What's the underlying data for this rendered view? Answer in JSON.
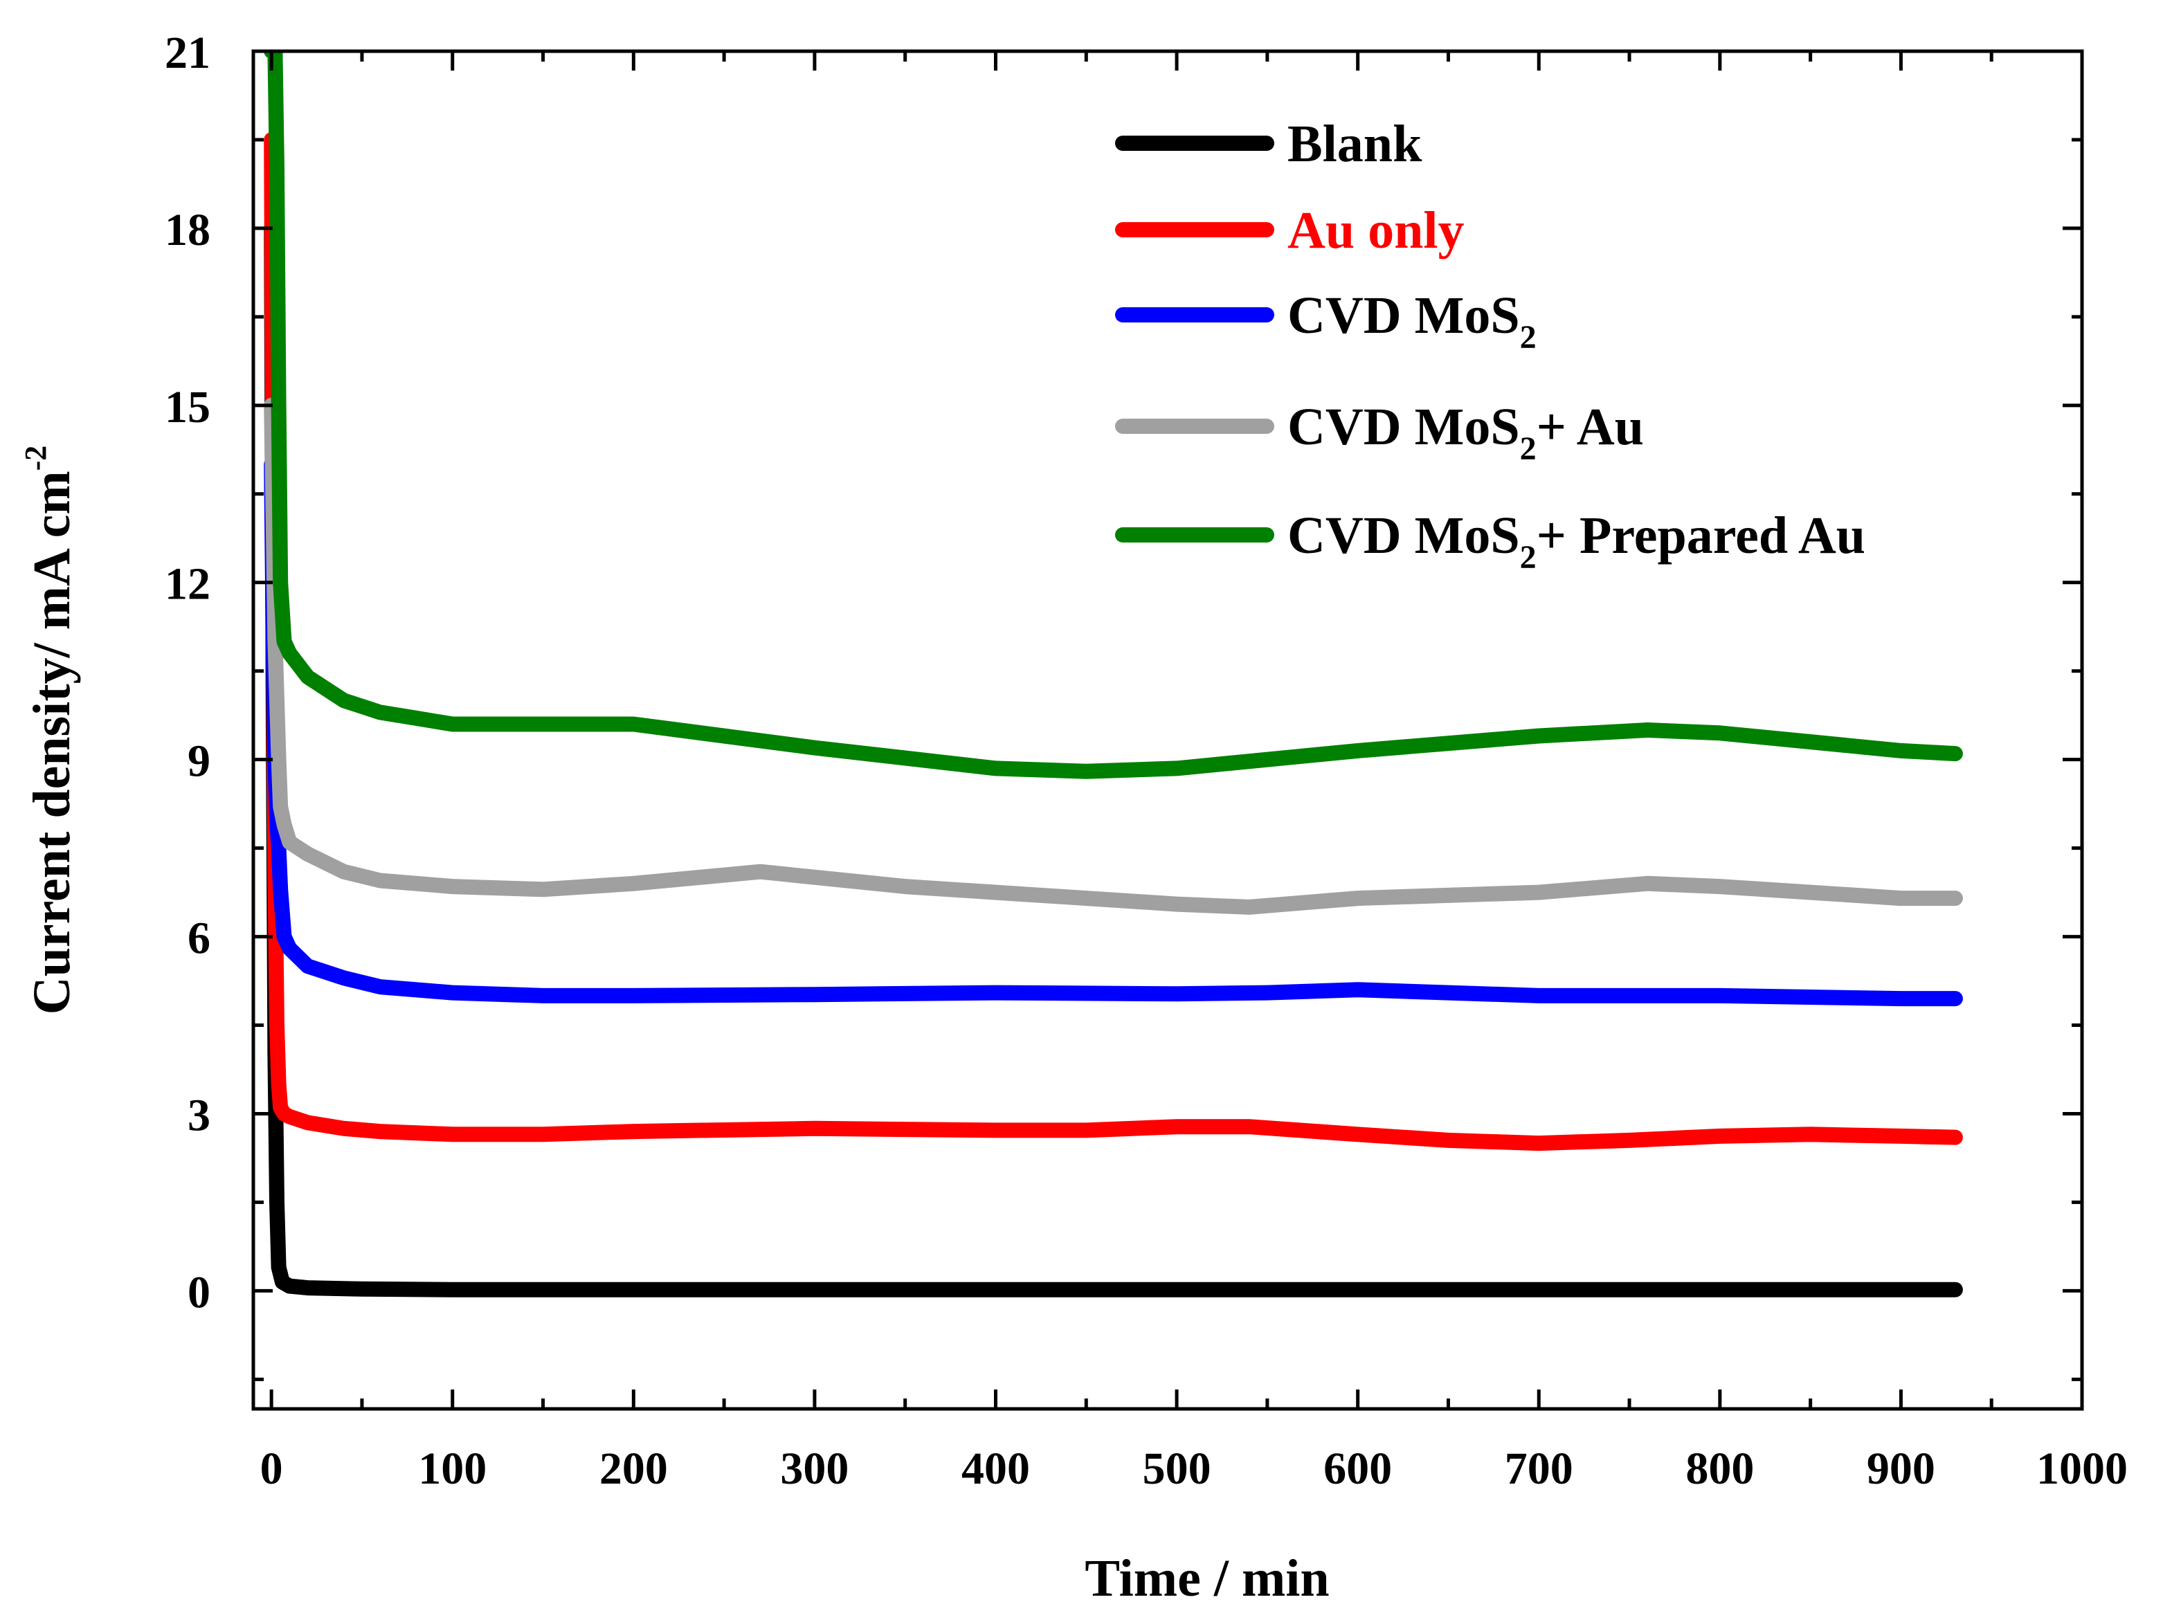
{
  "chart_data": {
    "type": "line",
    "title": "",
    "xlabel": "Time / min",
    "ylabel": "Current density/ mA cm",
    "ylabel_superscript": "-2",
    "xlim": [
      -10,
      1000
    ],
    "ylim": [
      -2,
      21
    ],
    "xticks": [
      0,
      100,
      200,
      300,
      400,
      500,
      600,
      700,
      800,
      900,
      1000
    ],
    "xtick_labels": [
      "0",
      "100",
      "200",
      "300",
      "400",
      "500",
      "600",
      "700",
      "800",
      "900",
      "1000"
    ],
    "yticks": [
      0,
      3,
      6,
      9,
      12,
      15,
      18,
      21
    ],
    "ytick_labels": [
      "0",
      "3",
      "6",
      "9",
      "12",
      "15",
      "18",
      "21"
    ],
    "grid": false,
    "legend_position": "top-right",
    "series": [
      {
        "name": "Blank",
        "legend_text": "Blank",
        "legend_sub": "",
        "legend_suffix": "",
        "color": "#000000",
        "label_color": "#000000",
        "x": [
          0,
          1,
          2,
          3,
          4,
          6,
          10,
          20,
          50,
          100,
          200,
          300,
          400,
          500,
          600,
          700,
          800,
          900,
          930
        ],
        "y": [
          18,
          10,
          4,
          1.5,
          0.4,
          0.15,
          0.08,
          0.05,
          0.03,
          0.02,
          0.02,
          0.02,
          0.02,
          0.02,
          0.02,
          0.02,
          0.02,
          0.02,
          0.02
        ]
      },
      {
        "name": "Au only",
        "legend_text": "Au only",
        "legend_sub": "",
        "legend_suffix": "",
        "color": "#ff0000",
        "label_color": "#ff0000",
        "x": [
          0,
          1,
          2,
          3,
          4,
          5,
          7,
          10,
          20,
          40,
          60,
          100,
          150,
          200,
          300,
          400,
          450,
          500,
          540,
          600,
          650,
          700,
          750,
          800,
          850,
          900,
          930
        ],
        "y": [
          19.5,
          12,
          7,
          4.5,
          3.5,
          3.1,
          3.0,
          2.95,
          2.85,
          2.75,
          2.7,
          2.65,
          2.65,
          2.7,
          2.75,
          2.72,
          2.72,
          2.78,
          2.78,
          2.65,
          2.55,
          2.5,
          2.55,
          2.62,
          2.65,
          2.62,
          2.6
        ]
      },
      {
        "name": "CVD MoS2",
        "legend_text": "CVD MoS",
        "legend_sub": "2",
        "legend_suffix": "",
        "color": "#0000ff",
        "label_color": "#000000",
        "x": [
          0,
          1,
          2,
          3,
          4,
          5,
          7,
          10,
          20,
          40,
          60,
          100,
          150,
          200,
          300,
          400,
          500,
          550,
          600,
          650,
          700,
          800,
          900,
          930
        ],
        "y": [
          14,
          11,
          9,
          8,
          7.5,
          6.8,
          6.0,
          5.8,
          5.5,
          5.3,
          5.15,
          5.05,
          5.0,
          5.0,
          5.02,
          5.05,
          5.03,
          5.05,
          5.1,
          5.05,
          5.0,
          5.0,
          4.95,
          4.95
        ]
      },
      {
        "name": "CVD MoS2+ Au",
        "legend_text": "CVD MoS",
        "legend_sub": "2",
        "legend_suffix": "+ Au",
        "color": "#a0a0a0",
        "label_color": "#000000",
        "x": [
          0,
          1,
          2,
          3,
          4,
          5,
          7,
          10,
          20,
          40,
          60,
          100,
          150,
          200,
          270,
          350,
          400,
          500,
          540,
          600,
          700,
          760,
          800,
          900,
          930
        ],
        "y": [
          15,
          13,
          11,
          10,
          9,
          8.2,
          7.9,
          7.6,
          7.4,
          7.1,
          6.95,
          6.85,
          6.8,
          6.9,
          7.1,
          6.85,
          6.75,
          6.55,
          6.5,
          6.65,
          6.75,
          6.9,
          6.85,
          6.65,
          6.65
        ]
      },
      {
        "name": "CVD MoS2+ Prepared Au",
        "legend_text": "CVD MoS",
        "legend_sub": "2",
        "legend_suffix": "+ Prepared Au",
        "color": "#008000",
        "label_color": "#000000",
        "x": [
          0,
          1,
          2,
          3,
          4,
          5,
          7,
          10,
          20,
          40,
          60,
          80,
          100,
          150,
          200,
          300,
          400,
          450,
          500,
          600,
          700,
          760,
          800,
          900,
          930
        ],
        "y": [
          21,
          21,
          21,
          19,
          15,
          12,
          11,
          10.8,
          10.4,
          10.0,
          9.8,
          9.7,
          9.6,
          9.6,
          9.6,
          9.2,
          8.85,
          8.8,
          8.85,
          9.15,
          9.4,
          9.5,
          9.45,
          9.15,
          9.1
        ]
      }
    ]
  }
}
